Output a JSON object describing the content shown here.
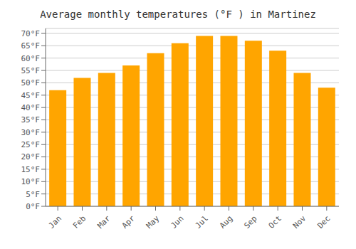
{
  "chart_data": {
    "type": "bar",
    "title": "Average monthly temperatures (°F ) in Martinez",
    "categories": [
      "Jan",
      "Feb",
      "Mar",
      "Apr",
      "May",
      "Jun",
      "Jul",
      "Aug",
      "Sep",
      "Oct",
      "Nov",
      "Dec"
    ],
    "values": [
      47,
      52,
      54,
      57,
      62,
      66,
      69,
      69,
      67,
      63,
      54,
      48
    ],
    "color": "#FFA500",
    "ylim": [
      0,
      72
    ],
    "yticks": [
      {
        "value": 0,
        "label": "0°F"
      },
      {
        "value": 5,
        "label": "5°F"
      },
      {
        "value": 10,
        "label": "10°F"
      },
      {
        "value": 15,
        "label": "15°F"
      },
      {
        "value": 20,
        "label": "20°F"
      },
      {
        "value": 25,
        "label": "25°F"
      },
      {
        "value": 30,
        "label": "30°F"
      },
      {
        "value": 35,
        "label": "35°F"
      },
      {
        "value": 40,
        "label": "40°F"
      },
      {
        "value": 45,
        "label": "45°F"
      },
      {
        "value": 50,
        "label": "50°F"
      },
      {
        "value": 55,
        "label": "55°F"
      },
      {
        "value": 60,
        "label": "60°F"
      },
      {
        "value": 65,
        "label": "65°F"
      },
      {
        "value": 70,
        "label": "70°F"
      }
    ],
    "grid": true
  }
}
